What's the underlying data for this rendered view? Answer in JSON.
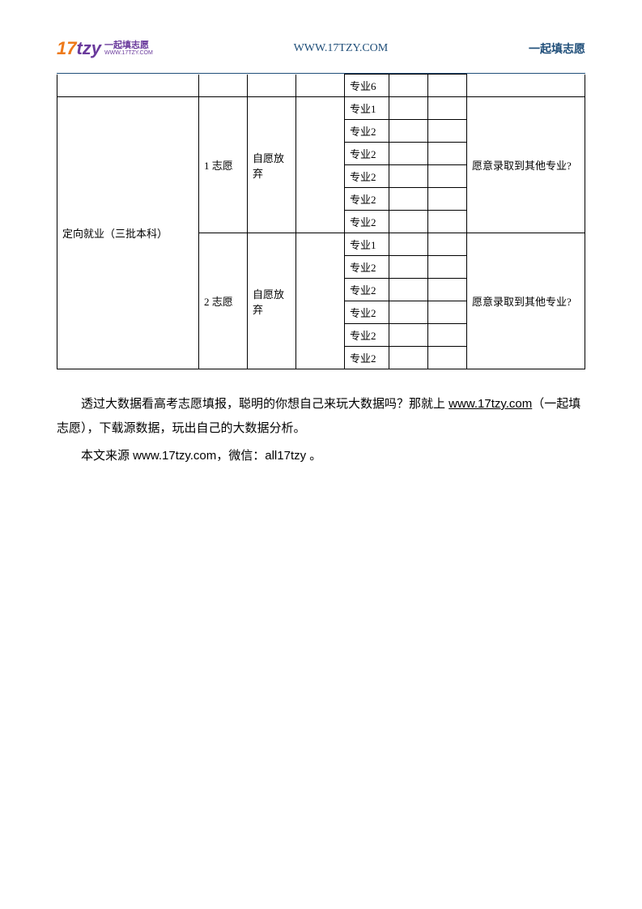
{
  "header": {
    "logo_main": "17",
    "logo_suffix": "tzy",
    "logo_cn": "一起填志愿",
    "logo_url": "WWW.17TZY.COM",
    "center": "WWW.17TZY.COM",
    "right": "一起填志愿"
  },
  "colors": {
    "brand_orange": "#ee7a1a",
    "brand_purple": "#6a3a9c",
    "header_blue": "#1f4e79",
    "border": "#000000",
    "background": "#ffffff",
    "text": "#000000"
  },
  "table": {
    "top_row_col5": "专业6",
    "category_label": "定向就业（三批本科）",
    "groups": [
      {
        "choice_label": "1 志愿",
        "waive_label": "自愿放弃",
        "accept_label": "愿意录取到其他专业?",
        "majors": [
          "专业1",
          "专业2",
          "专业2",
          "专业2",
          "专业2",
          "专业2"
        ]
      },
      {
        "choice_label": "2 志愿",
        "waive_label": "自愿放弃",
        "accept_label": "愿意录取到其他专业?",
        "majors": [
          "专业1",
          "专业2",
          "专业2",
          "专业2",
          "专业2",
          "专业2"
        ]
      }
    ]
  },
  "paragraphs": {
    "p1_a": "透过大数据看高考志愿填报，聪明的你想自己来玩大数据吗？那就上 ",
    "p1_link": "www.17tzy.com",
    "p1_b": "（一起填志愿），下载源数据，玩出自己的大数据分析。",
    "p2": "本文来源 www.17tzy.com，微信：all17tzy 。"
  }
}
